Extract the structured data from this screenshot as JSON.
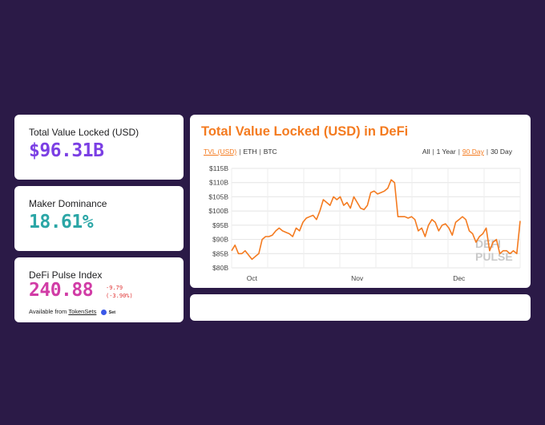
{
  "tvl": {
    "label": "Total Value Locked (USD)",
    "value": "$96.31B"
  },
  "maker": {
    "label": "Maker Dominance",
    "value": "18.61%"
  },
  "dpi": {
    "label": "DeFi Pulse Index",
    "value": "240.88",
    "change_abs": "-9.79",
    "change_pct": "(-3.90%)",
    "available_prefix": "Available from",
    "available_link": "TokenSets",
    "set_logo_text": "Set"
  },
  "chart_panel": {
    "title": "Total Value Locked (USD) in DeFi",
    "asset_options": [
      "TVL (USD)",
      "ETH",
      "BTC"
    ],
    "asset_selected": "TVL (USD)",
    "range_options": [
      "All",
      "1 Year",
      "90 Day",
      "30 Day"
    ],
    "range_selected": "90 Day",
    "watermark": [
      "DEFI",
      "PULSE"
    ]
  },
  "colors": {
    "background": "#2b1a47",
    "tvl_value": "#7b3fe4",
    "maker_value": "#2ba6a6",
    "dpi_value": "#d13ca6",
    "negative_change": "#e03434",
    "chart_accent": "#f47b20"
  },
  "chart_data": {
    "type": "line",
    "title": "Total Value Locked (USD) in DeFi",
    "xlabel": "",
    "ylabel": "",
    "yticks": [
      "$80B",
      "$85B",
      "$90B",
      "$95B",
      "$100B",
      "$105B",
      "$110B",
      "$115B"
    ],
    "ylim": [
      80,
      115
    ],
    "xticks": [
      {
        "label": "Oct",
        "index": 6
      },
      {
        "label": "Nov",
        "index": 37
      },
      {
        "label": "Dec",
        "index": 67
      }
    ],
    "grid": true,
    "series": [
      {
        "color": "#f47b20",
        "values": [
          86,
          88,
          85,
          85,
          86,
          84.5,
          83,
          84,
          85,
          90,
          91,
          91,
          91.5,
          93,
          94,
          93,
          92.5,
          92,
          91,
          94,
          93,
          96,
          97.5,
          98,
          98.5,
          97,
          100,
          104,
          103,
          102,
          105,
          104,
          105,
          102,
          103,
          101,
          105,
          103,
          101,
          100.5,
          102,
          106.5,
          107,
          106,
          106.5,
          107,
          108,
          111,
          110,
          98,
          98,
          98,
          97.5,
          98,
          97,
          93,
          94,
          91,
          95,
          97,
          96,
          93,
          95,
          95.5,
          94,
          91.5,
          96,
          97,
          98,
          97,
          93,
          92,
          89,
          91,
          92,
          94,
          86,
          89,
          90,
          85,
          86,
          86,
          85,
          86,
          85,
          96.5
        ]
      }
    ]
  }
}
